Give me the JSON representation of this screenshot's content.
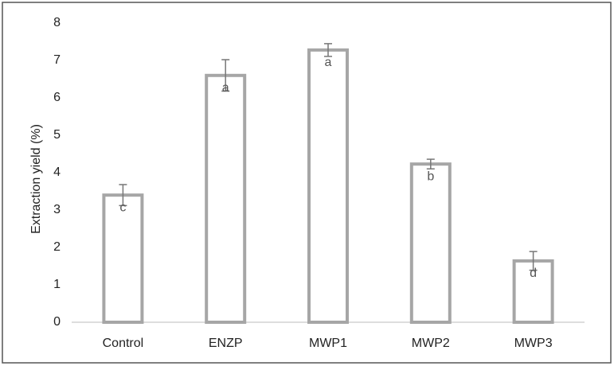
{
  "chart_data": {
    "type": "bar",
    "y_label": "Extraction yield (%)",
    "categories": [
      "Control",
      "ENZP",
      "MWP1",
      "MWP2",
      "MWP3"
    ],
    "values": [
      3.4,
      6.6,
      7.28,
      4.23,
      1.64
    ],
    "errors": [
      0.28,
      0.42,
      0.17,
      0.13,
      0.25
    ],
    "letters": [
      "c",
      "a",
      "a",
      "b",
      "d"
    ],
    "color": "#a6a6a6",
    "ylim": [
      0,
      8
    ],
    "yticks": [
      0,
      1,
      2,
      3,
      4,
      5,
      6,
      7,
      8
    ],
    "grid": false
  }
}
